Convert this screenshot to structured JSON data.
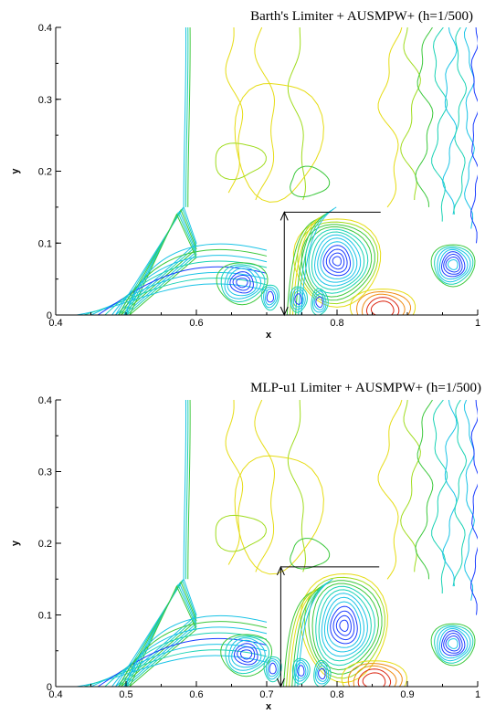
{
  "chart_data": [
    {
      "type": "contour",
      "title": "Barth's Limiter + AUSMPW+ (h=1/500)",
      "xlabel": "x",
      "ylabel": "y",
      "xlim": [
        0.4,
        1.0
      ],
      "ylim": [
        0.0,
        0.4
      ],
      "x_ticks": [
        {
          "v": 0.4,
          "label": "0.4"
        },
        {
          "v": 0.6,
          "label": "0.6"
        },
        {
          "v": 0.8,
          "label": "0.8"
        },
        {
          "v": 1.0,
          "label": "1"
        }
      ],
      "y_ticks": [
        {
          "v": 0.0,
          "label": "0"
        },
        {
          "v": 0.1,
          "label": "0.1"
        },
        {
          "v": 0.2,
          "label": "0.2"
        },
        {
          "v": 0.3,
          "label": "0.3"
        },
        {
          "v": 0.4,
          "label": "0.4"
        }
      ],
      "x_minor_step": 0.05,
      "y_minor_step": 0.05,
      "annotation": {
        "x": 0.725,
        "y_top": 0.143,
        "line_x_end": 0.862
      },
      "vortex": {
        "x": 0.8,
        "y": 0.075
      }
    },
    {
      "type": "contour",
      "title": "MLP-u1 Limiter + AUSMPW+ (h=1/500)",
      "xlabel": "x",
      "ylabel": "y",
      "xlim": [
        0.4,
        1.0
      ],
      "ylim": [
        0.0,
        0.4
      ],
      "x_ticks": [
        {
          "v": 0.4,
          "label": "0.4"
        },
        {
          "v": 0.5,
          "label": "0.5"
        },
        {
          "v": 0.6,
          "label": "0.6"
        },
        {
          "v": 0.7,
          "label": "0.7"
        },
        {
          "v": 0.8,
          "label": "0.8"
        },
        {
          "v": 0.9,
          "label": "0.9"
        },
        {
          "v": 1.0,
          "label": "1"
        }
      ],
      "y_ticks": [
        {
          "v": 0.0,
          "label": "0"
        },
        {
          "v": 0.1,
          "label": "0.1"
        },
        {
          "v": 0.2,
          "label": "0.2"
        },
        {
          "v": 0.3,
          "label": "0.3"
        },
        {
          "v": 0.4,
          "label": "0.4"
        }
      ],
      "x_minor_step": 0.05,
      "y_minor_step": 0.05,
      "annotation": {
        "x": 0.72,
        "y_top": 0.167,
        "line_x_end": 0.86
      },
      "vortex": {
        "x": 0.81,
        "y": 0.085
      }
    }
  ],
  "palette": {
    "blue": "#1a3cff",
    "cyan": "#19c3e6",
    "teal": "#19d2b4",
    "green": "#3cc83c",
    "lime": "#a0dc1e",
    "yellow": "#e6dc14",
    "orange": "#f08c14",
    "red": "#dc2814"
  }
}
